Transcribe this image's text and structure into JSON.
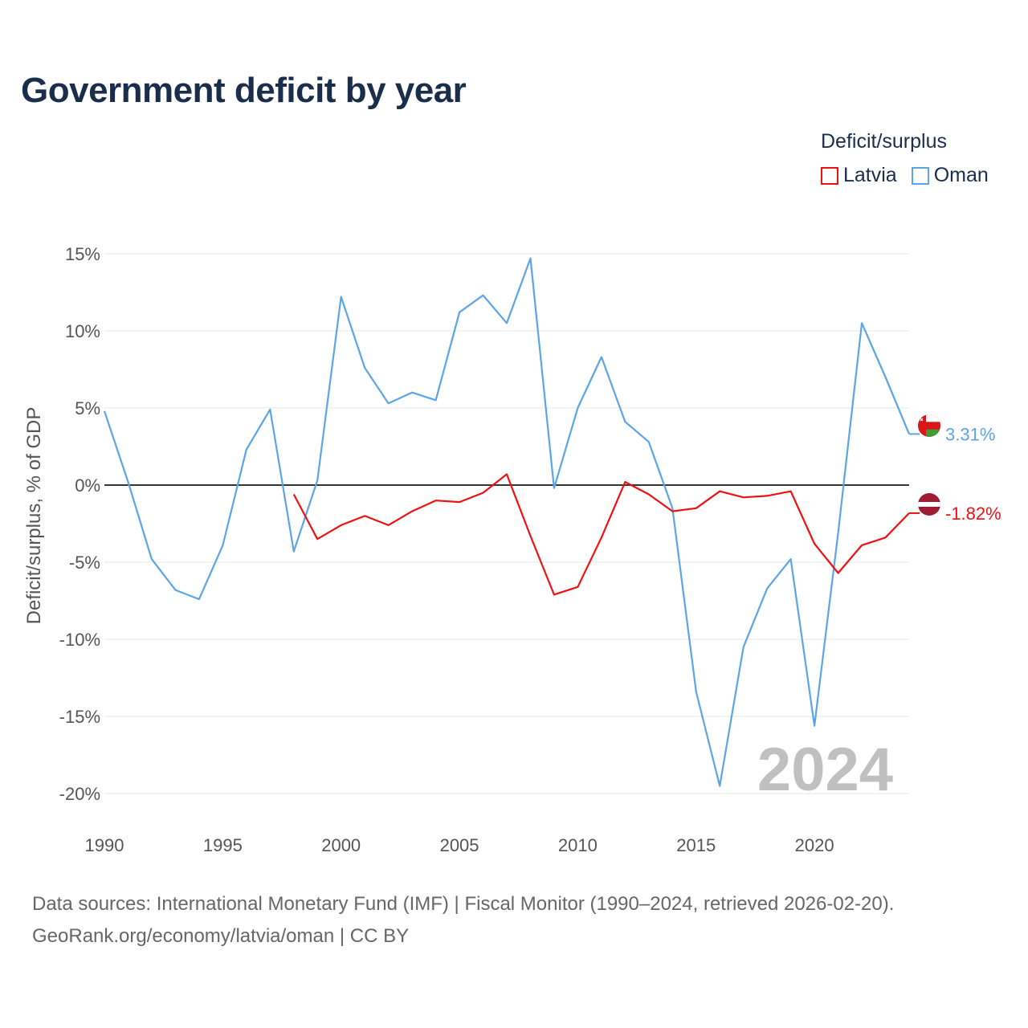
{
  "title": "Government deficit by year",
  "legend": {
    "title": "Deficit/surplus",
    "items": [
      {
        "name": "Latvia",
        "color": "#ee1111"
      },
      {
        "name": "Oman",
        "color": "#5aa5e6"
      }
    ]
  },
  "watermark_year": "2024",
  "footer": {
    "line1": "Data sources: International Monetary Fund (IMF) | Fiscal Monitor (1990–2024, retrieved 2026-02-20).",
    "line2": "GeoRank.org/economy/latvia/oman | CC BY"
  },
  "flag_icons": {
    "Latvia": "latvia-flag-icon",
    "Oman": "oman-flag-icon"
  },
  "chart_data": {
    "type": "line",
    "title": "Government deficit by year",
    "xlabel": "",
    "ylabel": "Deficit/surplus, % of GDP",
    "xlim": [
      1990,
      2024
    ],
    "ylim": [
      -21.5,
      16.5
    ],
    "xticks": [
      1990,
      1995,
      2000,
      2005,
      2010,
      2015,
      2020
    ],
    "xtick_labels": [
      "1990",
      "1995",
      "2000",
      "2005",
      "2010",
      "2015",
      "2020"
    ],
    "yticks": [
      15,
      10,
      5,
      0,
      -5,
      -10,
      -15,
      -20
    ],
    "ytick_labels": [
      "15%",
      "10%",
      "5%",
      "0%",
      "-5%",
      "-10%",
      "-15%",
      "-20%"
    ],
    "zero_line": true,
    "grid": true,
    "series": [
      {
        "name": "Oman",
        "color": "#5aa5e6",
        "end_label": "3.31%",
        "points": [
          [
            1990,
            4.8
          ],
          [
            1991,
            0.2
          ],
          [
            1992,
            -4.8
          ],
          [
            1993,
            -6.8
          ],
          [
            1994,
            -7.4
          ],
          [
            1995,
            -3.9
          ],
          [
            1996,
            2.3
          ],
          [
            1997,
            4.9
          ],
          [
            1998,
            -4.3
          ],
          [
            1999,
            0.3
          ],
          [
            2000,
            12.2
          ],
          [
            2001,
            7.6
          ],
          [
            2002,
            5.3
          ],
          [
            2003,
            6.0
          ],
          [
            2004,
            5.5
          ],
          [
            2005,
            11.2
          ],
          [
            2006,
            12.3
          ],
          [
            2007,
            10.5
          ],
          [
            2008,
            14.7
          ],
          [
            2009,
            -0.2
          ],
          [
            2010,
            5.0
          ],
          [
            2011,
            8.3
          ],
          [
            2012,
            4.1
          ],
          [
            2013,
            2.8
          ],
          [
            2014,
            -1.5
          ],
          [
            2015,
            -13.4
          ],
          [
            2016,
            -19.5
          ],
          [
            2017,
            -10.5
          ],
          [
            2018,
            -6.7
          ],
          [
            2019,
            -4.8
          ],
          [
            2020,
            -15.6
          ],
          [
            2021,
            -3.1
          ],
          [
            2022,
            10.5
          ],
          [
            2023,
            7.0
          ],
          [
            2024,
            3.31
          ]
        ]
      },
      {
        "name": "Latvia",
        "color": "#ee1111",
        "end_label": "-1.82%",
        "points": [
          [
            1998,
            -0.6
          ],
          [
            1999,
            -3.5
          ],
          [
            2000,
            -2.6
          ],
          [
            2001,
            -2.0
          ],
          [
            2002,
            -2.6
          ],
          [
            2003,
            -1.7
          ],
          [
            2004,
            -1.0
          ],
          [
            2005,
            -1.1
          ],
          [
            2006,
            -0.5
          ],
          [
            2007,
            0.7
          ],
          [
            2008,
            -3.3
          ],
          [
            2009,
            -7.1
          ],
          [
            2010,
            -6.6
          ],
          [
            2011,
            -3.4
          ],
          [
            2012,
            0.2
          ],
          [
            2013,
            -0.6
          ],
          [
            2014,
            -1.7
          ],
          [
            2015,
            -1.5
          ],
          [
            2016,
            -0.4
          ],
          [
            2017,
            -0.8
          ],
          [
            2018,
            -0.7
          ],
          [
            2019,
            -0.4
          ],
          [
            2020,
            -3.8
          ],
          [
            2021,
            -5.7
          ],
          [
            2022,
            -3.9
          ],
          [
            2023,
            -3.4
          ],
          [
            2024,
            -1.82
          ]
        ]
      }
    ]
  }
}
